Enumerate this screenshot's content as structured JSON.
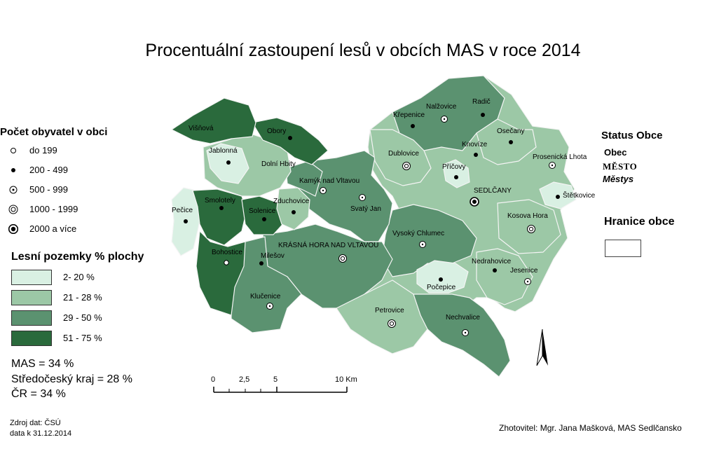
{
  "title": "Procentuální zastoupení lesů v obcích MAS v roce 2014",
  "population_legend": {
    "heading": "Počet obyvatel v obci",
    "items": [
      {
        "label": "do 199",
        "symbol": "hollow-circle-small"
      },
      {
        "label": "200 - 499",
        "symbol": "filled-dot"
      },
      {
        "label": "500 - 999",
        "symbol": "circle-with-dot"
      },
      {
        "label": "1000 - 1999",
        "symbol": "double-circle"
      },
      {
        "label": "2000 a více",
        "symbol": "bullseye-large"
      }
    ]
  },
  "forest_legend": {
    "heading": "Lesní pozemky % plochy",
    "classes": [
      {
        "label": "2- 20 %",
        "color": "#d9f0e3"
      },
      {
        "label": "21 - 28 %",
        "color": "#9cc8a6"
      },
      {
        "label": "29 - 50 %",
        "color": "#5b9270"
      },
      {
        "label": "51 - 75 %",
        "color": "#2a6a3c"
      }
    ]
  },
  "stats": {
    "mas": "MAS = 34 %",
    "kraj": "Středočeský kraj = 28 %",
    "cr": "ČR = 34 %"
  },
  "status_legend": {
    "heading": "Status Obce",
    "obec": "Obec",
    "mesto": "MĚSTO",
    "mestys": "Městys"
  },
  "boundary_legend": {
    "heading": "Hranice obce"
  },
  "scale_bar": {
    "labels": [
      "0",
      "2,5",
      "5",
      "10 Km"
    ]
  },
  "source": {
    "line1": "Zdroj dat: ČSÚ",
    "line2": "data k 31.12.2014"
  },
  "author": "Zhotovitel: Mgr. Jana Mašková, MAS Sedlčansko",
  "municipalities": [
    {
      "name": "Višňová",
      "forest_class": 4,
      "symbol": "none"
    },
    {
      "name": "Obory",
      "forest_class": 4,
      "symbol": "filled-dot"
    },
    {
      "name": "Jablonná",
      "forest_class": 1,
      "symbol": "filled-dot"
    },
    {
      "name": "Dolní Hbity",
      "forest_class": 2,
      "symbol": "none"
    },
    {
      "name": "Kamýk nad Vltavou",
      "forest_class": 3,
      "symbol": "circle-with-dot"
    },
    {
      "name": "Krásná Hora nad Vltavou",
      "forest_class": 3,
      "symbol": "double-circle"
    },
    {
      "name": "Smolotely",
      "forest_class": 4,
      "symbol": "filled-dot"
    },
    {
      "name": "Pečice",
      "forest_class": 1,
      "symbol": "filled-dot"
    },
    {
      "name": "Zduchovice",
      "forest_class": 2,
      "symbol": "filled-dot"
    },
    {
      "name": "Solenice",
      "forest_class": 4,
      "symbol": "filled-dot"
    },
    {
      "name": "Svatý Jan",
      "forest_class": 3,
      "symbol": "circle-with-dot"
    },
    {
      "name": "Bohostice",
      "forest_class": 4,
      "symbol": "hollow-circle-small"
    },
    {
      "name": "Milešov",
      "forest_class": 3,
      "symbol": "filled-dot"
    },
    {
      "name": "Klučenice",
      "forest_class": 3,
      "symbol": "circle-with-dot"
    },
    {
      "name": "Křepenice",
      "forest_class": 3,
      "symbol": "filled-dot"
    },
    {
      "name": "Nalžovice",
      "forest_class": 3,
      "symbol": "circle-with-dot"
    },
    {
      "name": "Radič",
      "forest_class": 3,
      "symbol": "filled-dot"
    },
    {
      "name": "Dublovice",
      "forest_class": 2,
      "symbol": "double-circle"
    },
    {
      "name": "Osečany",
      "forest_class": 2,
      "symbol": "filled-dot"
    },
    {
      "name": "Knovíze",
      "forest_class": 2,
      "symbol": "filled-dot"
    },
    {
      "name": "Prosenická Lhota",
      "forest_class": 2,
      "symbol": "circle-with-dot"
    },
    {
      "name": "Příčovy",
      "forest_class": 1,
      "symbol": "filled-dot"
    },
    {
      "name": "SEDLČANY",
      "forest_class": 2,
      "symbol": "bullseye-large"
    },
    {
      "name": "Štětkovice",
      "forest_class": 1,
      "symbol": "filled-dot"
    },
    {
      "name": "Kosova Hora",
      "forest_class": 2,
      "symbol": "double-circle"
    },
    {
      "name": "Vysoký Chlumec",
      "forest_class": 3,
      "symbol": "circle-with-dot"
    },
    {
      "name": "Nedrahovice",
      "forest_class": 2,
      "symbol": "filled-dot"
    },
    {
      "name": "Jesenice",
      "forest_class": 2,
      "symbol": "circle-with-dot"
    },
    {
      "name": "Počepice",
      "forest_class": 1,
      "symbol": "filled-dot"
    },
    {
      "name": "Petrovice",
      "forest_class": 2,
      "symbol": "double-circle"
    },
    {
      "name": "Nechvalice",
      "forest_class": 3,
      "symbol": "circle-with-dot"
    }
  ]
}
